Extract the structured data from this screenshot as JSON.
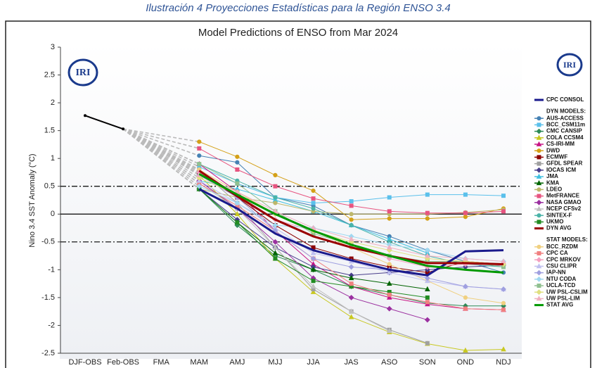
{
  "caption": "Ilustración 4 Proyecciones Estadísticas para la Región ENSO 3.4",
  "chart_data": {
    "type": "line",
    "title": "Model Predictions of ENSO from Mar 2024",
    "logo_text": "IRI",
    "y_label": "Nino 3.4 SST Anomaly (°C)",
    "categories": [
      "DJF-OBS",
      "Feb-OBS",
      "FMA",
      "MAM",
      "AMJ",
      "MJJ",
      "JJA",
      "JAS",
      "ASO",
      "SON",
      "OND",
      "NDJ"
    ],
    "ylim": [
      -2.5,
      3
    ],
    "yticks": [
      3,
      2.5,
      2,
      1.5,
      1,
      0.5,
      0,
      -0.5,
      -1,
      -1.5,
      -2,
      -2.5
    ],
    "thresholds": [
      0.5,
      -0.5
    ],
    "observed": {
      "color": "#000000",
      "values": [
        1.77,
        1.53,
        null,
        null,
        null,
        null,
        null,
        null,
        null,
        null,
        null,
        null
      ]
    },
    "legend_headers": [
      {
        "label": "DYN MODELS:",
        "first_series": 1
      },
      {
        "label": "STAT MODELS:",
        "first_series": 19
      }
    ],
    "series": [
      {
        "name": "CPC CONSOL",
        "color": "#1a1a8c",
        "width": 3,
        "values": [
          null,
          null,
          null,
          0.45,
          0.1,
          -0.35,
          -0.65,
          -0.83,
          -1.0,
          -1.1,
          -0.67,
          -0.65
        ]
      },
      {
        "name": "AUS-ACCESS",
        "color": "#4682b4",
        "marker": "circle",
        "values": [
          null,
          null,
          null,
          1.05,
          0.93,
          0.3,
          0.15,
          -0.2,
          -0.4,
          -0.65,
          -0.85,
          -1.05
        ]
      },
      {
        "name": "BCC_CSM11m",
        "color": "#5bc0eb",
        "marker": "square",
        "values": [
          null,
          null,
          null,
          0.85,
          0.55,
          0.3,
          0.2,
          0.23,
          0.3,
          0.35,
          0.35,
          0.33
        ]
      },
      {
        "name": "CMC CANSIP",
        "color": "#2e8b57",
        "marker": "diamond",
        "values": [
          null,
          null,
          null,
          0.45,
          -0.2,
          -0.75,
          -1.0,
          -1.3,
          -1.45,
          -1.6,
          -1.65,
          -1.65
        ]
      },
      {
        "name": "COLA CCSM4",
        "color": "#c8c820",
        "marker": "triangle",
        "values": [
          null,
          null,
          null,
          0.7,
          0.0,
          -0.8,
          -1.4,
          -1.85,
          -2.12,
          -2.33,
          -2.45,
          -2.43
        ]
      },
      {
        "name": "CS-IRI-MM",
        "color": "#c71585",
        "marker": "triangle",
        "values": [
          null,
          null,
          null,
          0.9,
          0.4,
          -0.3,
          -0.9,
          -1.3,
          -1.5,
          -1.62,
          -1.7,
          -1.72
        ]
      },
      {
        "name": "DWD",
        "color": "#d4a017",
        "marker": "circle",
        "values": [
          null,
          null,
          null,
          1.3,
          1.03,
          0.7,
          0.42,
          -0.1,
          -0.08,
          -0.08,
          -0.05,
          0.1
        ]
      },
      {
        "name": "ECMWF",
        "color": "#8b0000",
        "marker": "square",
        "values": [
          null,
          null,
          null,
          0.75,
          0.3,
          -0.2,
          -0.6,
          -0.8,
          -0.95,
          -1.05,
          -0.85,
          -0.9
        ]
      },
      {
        "name": "GFDL SPEAR",
        "color": "#a0a0a0",
        "marker": "square",
        "values": [
          null,
          null,
          null,
          0.8,
          0.2,
          -0.6,
          -1.35,
          -1.75,
          -2.08,
          -2.32,
          null,
          null
        ]
      },
      {
        "name": "IOCAS ICM",
        "color": "#483d8b",
        "marker": "diamond",
        "values": [
          null,
          null,
          null,
          0.45,
          -0.1,
          -0.6,
          -0.95,
          -1.1,
          -1.05,
          -1.0,
          -0.95,
          -0.92
        ]
      },
      {
        "name": "JMA",
        "color": "#40c0e0",
        "marker": "triangle",
        "values": [
          null,
          null,
          null,
          0.6,
          0.45,
          0.25,
          0.05,
          -0.2,
          -0.45,
          -0.7,
          null,
          null
        ]
      },
      {
        "name": "KMA",
        "color": "#006400",
        "marker": "triangle",
        "values": [
          null,
          null,
          null,
          0.45,
          -0.15,
          -0.7,
          -1.0,
          -1.15,
          -1.25,
          -1.35,
          null,
          null
        ]
      },
      {
        "name": "LDEO",
        "color": "#bdb76b",
        "marker": "circle",
        "values": [
          null,
          null,
          null,
          0.45,
          0.3,
          0.2,
          0.05,
          0.0,
          0.0,
          0.0,
          0.03,
          0.08
        ]
      },
      {
        "name": "MetFRANCE",
        "color": "#e75480",
        "marker": "square",
        "values": [
          null,
          null,
          null,
          1.18,
          0.8,
          0.5,
          0.28,
          0.15,
          0.05,
          0.02,
          0.02,
          0.05
        ]
      },
      {
        "name": "NASA GMAO",
        "color": "#9b30a0",
        "marker": "diamond",
        "values": [
          null,
          null,
          null,
          0.6,
          0.1,
          -0.5,
          -1.15,
          -1.5,
          -1.7,
          -1.9,
          null,
          null
        ]
      },
      {
        "name": "NCEP CFSv2",
        "color": "#c0c0c0",
        "marker": "triangle",
        "values": [
          null,
          null,
          null,
          0.55,
          0.1,
          -0.6,
          -1.3,
          -1.75,
          -2.1,
          null,
          null,
          null
        ]
      },
      {
        "name": "SINTEX-F",
        "color": "#4ab3a8",
        "marker": "circle",
        "values": [
          null,
          null,
          null,
          0.9,
          0.6,
          0.3,
          0.1,
          -0.2,
          -0.5,
          -0.75,
          -0.9,
          -0.95
        ]
      },
      {
        "name": "UKMO",
        "color": "#228b22",
        "marker": "square",
        "values": [
          null,
          null,
          null,
          0.45,
          -0.15,
          -0.8,
          -1.2,
          -1.3,
          -1.4,
          -1.5,
          null,
          null
        ]
      },
      {
        "name": "DYN AVG",
        "color": "#990000",
        "width": 3,
        "values": [
          null,
          null,
          null,
          0.78,
          0.32,
          -0.1,
          -0.4,
          -0.6,
          -0.75,
          -0.88,
          -0.88,
          -0.9
        ]
      },
      {
        "name": "BCC_RZDM",
        "color": "#f0d080",
        "marker": "circle",
        "values": [
          null,
          null,
          null,
          0.8,
          0.4,
          0.0,
          -0.3,
          -0.6,
          -0.9,
          -1.2,
          -1.5,
          -1.6
        ]
      },
      {
        "name": "CPC CA",
        "color": "#f08080",
        "marker": "square",
        "values": [
          null,
          null,
          null,
          0.55,
          0.15,
          -0.3,
          -0.8,
          -1.25,
          -1.45,
          -1.58,
          -1.7,
          -1.72
        ]
      },
      {
        "name": "CPC MRKOV",
        "color": "#f4a0c0",
        "marker": "diamond",
        "values": [
          null,
          null,
          null,
          0.75,
          0.35,
          -0.1,
          -0.3,
          -0.55,
          -0.8,
          -0.95,
          -0.9,
          -0.92
        ]
      },
      {
        "name": "CSU CLIPR",
        "color": "#c0c0f0",
        "marker": "triangle",
        "values": [
          null,
          null,
          null,
          0.6,
          0.2,
          -0.25,
          -0.7,
          -0.85,
          -1.05,
          -1.2,
          -1.3,
          -1.35
        ]
      },
      {
        "name": "IAP-NN",
        "color": "#a0a0e0",
        "marker": "diamond",
        "values": [
          null,
          null,
          null,
          0.7,
          0.3,
          -0.3,
          -0.8,
          -0.95,
          -1.0,
          -1.15,
          -1.3,
          -1.35
        ]
      },
      {
        "name": "NTU CODA",
        "color": "#a0d8f0",
        "marker": "diamond",
        "values": [
          null,
          null,
          null,
          0.5,
          0.2,
          -0.2,
          -0.25,
          -0.4,
          -0.55,
          -0.65,
          -0.8,
          -0.85
        ]
      },
      {
        "name": "UCLA-TCD",
        "color": "#90c090",
        "marker": "square",
        "values": [
          null,
          null,
          null,
          0.9,
          0.55,
          0.05,
          -0.35,
          -0.55,
          -0.75,
          -0.85,
          -0.85,
          -0.95
        ]
      },
      {
        "name": "UW PSL-CSLIM",
        "color": "#e0e080",
        "marker": "diamond",
        "values": [
          null,
          null,
          null,
          0.65,
          0.35,
          0.0,
          -0.3,
          -0.5,
          -0.65,
          -0.8,
          -0.85,
          -0.9
        ]
      },
      {
        "name": "UW PSL-LIM",
        "color": "#f0b0c0",
        "marker": "triangle",
        "values": [
          null,
          null,
          null,
          0.7,
          0.4,
          0.05,
          -0.25,
          -0.45,
          -0.6,
          -0.75,
          -0.8,
          -0.85
        ]
      },
      {
        "name": "STAT AVG",
        "color": "#009900",
        "width": 3,
        "values": [
          null,
          null,
          null,
          0.72,
          0.35,
          0.0,
          -0.3,
          -0.55,
          -0.75,
          -0.93,
          -1.0,
          -1.05
        ]
      }
    ]
  }
}
